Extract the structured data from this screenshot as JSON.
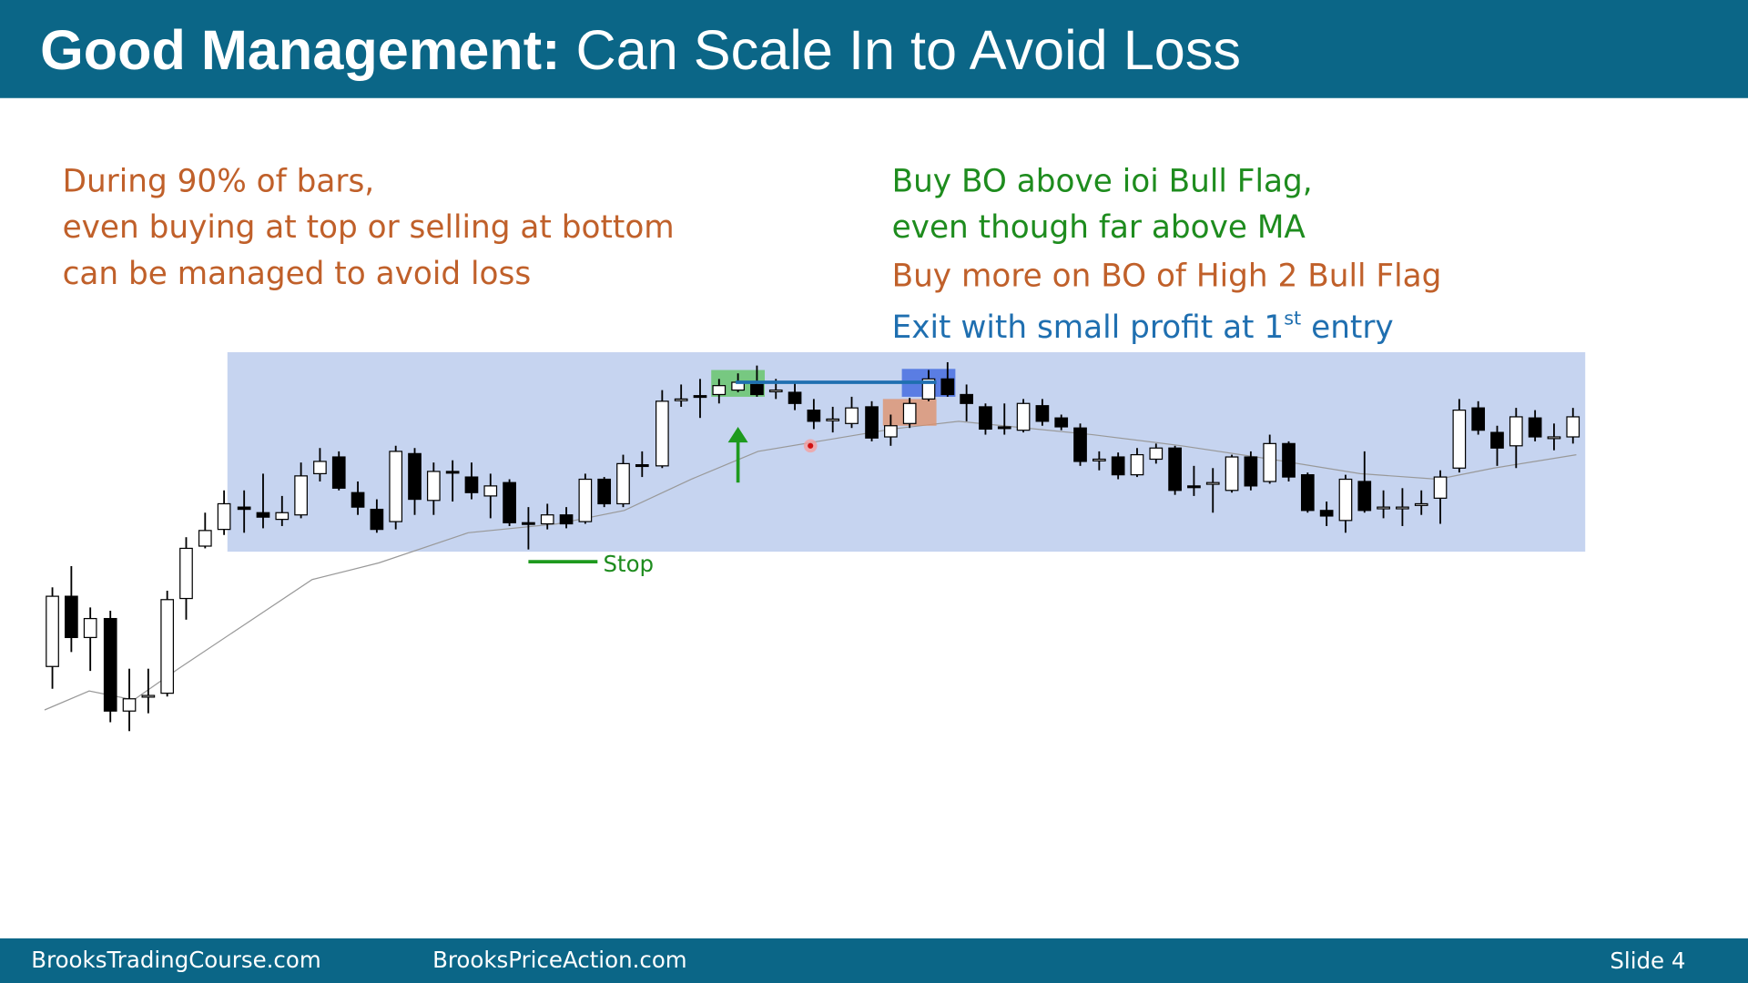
{
  "header": {
    "title_bold": "Good Management:",
    "title_rest": "Can Scale In to Avoid Loss"
  },
  "left_text": [
    "During 90% of bars,",
    "even buying at top or selling at bottom",
    "can be managed to avoid loss"
  ],
  "right_text": {
    "line1": "Buy BO above ioi Bull Flag,",
    "line2": "even though far above MA",
    "line3": "Buy more on BO of High 2 Bull Flag",
    "line4_main": "Exit with small profit at 1",
    "line4_sup": "st",
    "line4_end": "entry"
  },
  "chart": {
    "stop_label": "Stop"
  },
  "footer": {
    "site1": "BrooksTradingCourse.com",
    "site2": "BrooksPriceAction.com",
    "slide": "Slide  4"
  }
}
